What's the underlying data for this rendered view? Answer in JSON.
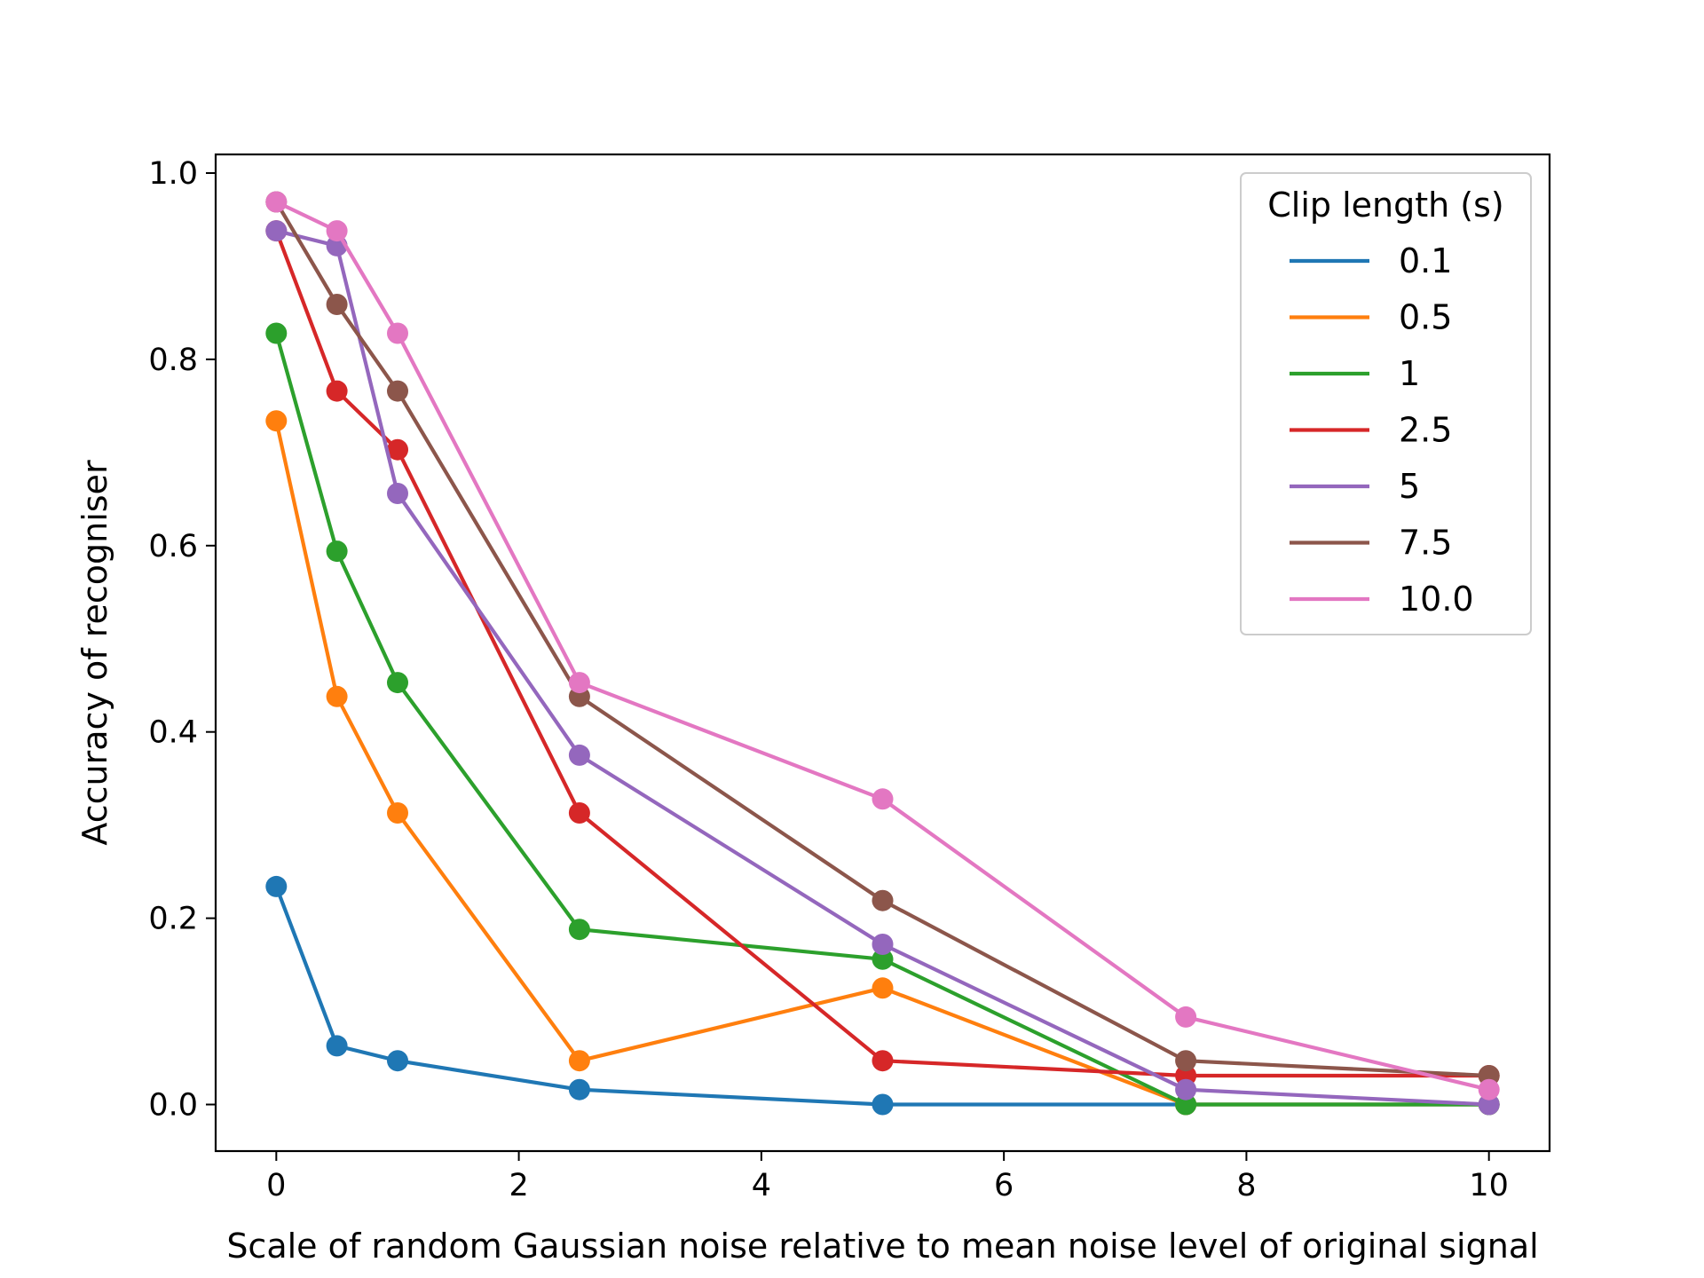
{
  "chart_data": {
    "type": "line",
    "xlabel": "Scale of random Gaussian noise relative to mean noise level of original signal",
    "ylabel": "Accuracy of recogniser",
    "xlim": [
      -0.5,
      10.5
    ],
    "ylim": [
      -0.05,
      1.02
    ],
    "grid": false,
    "legend_position": "top-right",
    "legend_title": "Clip length (s)",
    "x_ticks": [
      0,
      2,
      4,
      6,
      8,
      10
    ],
    "x_tick_labels": [
      "0",
      "2",
      "4",
      "6",
      "8",
      "10"
    ],
    "y_ticks": [
      0.0,
      0.2,
      0.4,
      0.6,
      0.8,
      1.0
    ],
    "y_tick_labels": [
      "0.0",
      "0.2",
      "0.4",
      "0.6",
      "0.8",
      "1.0"
    ],
    "x": [
      0,
      0.5,
      1,
      2.5,
      5,
      7.5,
      10
    ],
    "series": [
      {
        "name": "0.1",
        "color": "#1f77b4",
        "values": [
          0.234,
          0.063,
          0.047,
          0.016,
          0.0,
          0.0,
          0.0
        ]
      },
      {
        "name": "0.5",
        "color": "#ff7f0e",
        "values": [
          0.734,
          0.438,
          0.313,
          0.047,
          0.125,
          0.0,
          0.0
        ]
      },
      {
        "name": "1",
        "color": "#2ca02c",
        "values": [
          0.828,
          0.594,
          0.453,
          0.188,
          0.156,
          0.0,
          0.0
        ]
      },
      {
        "name": "2.5",
        "color": "#d62728",
        "values": [
          0.938,
          0.766,
          0.703,
          0.313,
          0.047,
          0.031,
          0.031
        ]
      },
      {
        "name": "5",
        "color": "#9467bd",
        "values": [
          0.938,
          0.922,
          0.656,
          0.375,
          0.172,
          0.016,
          0.0
        ]
      },
      {
        "name": "7.5",
        "color": "#8c564b",
        "values": [
          0.969,
          0.859,
          0.766,
          0.438,
          0.219,
          0.047,
          0.031
        ]
      },
      {
        "name": "10.0",
        "color": "#e377c2",
        "values": [
          0.969,
          0.938,
          0.828,
          0.453,
          0.328,
          0.094,
          0.016
        ]
      }
    ]
  }
}
